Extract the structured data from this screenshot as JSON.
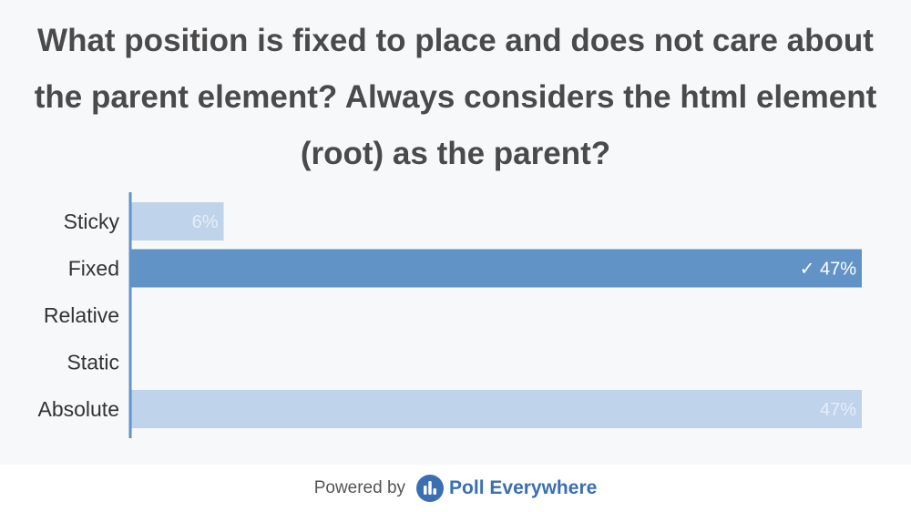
{
  "question": {
    "line1": "What position is fixed to place and does not care about",
    "line2": "the parent element? Always considers the html element",
    "line3": "(root) as the parent?"
  },
  "chart_data": {
    "type": "bar",
    "orientation": "horizontal",
    "categories": [
      "Sticky",
      "Fixed",
      "Relative",
      "Static",
      "Absolute"
    ],
    "values": [
      6,
      47,
      0,
      0,
      47
    ],
    "value_labels": [
      "6%",
      "✓ 47%",
      "",
      "",
      "47%"
    ],
    "correct": [
      false,
      true,
      false,
      false,
      false
    ],
    "xlim": [
      0,
      47
    ],
    "colors": {
      "correct": "#6293c6",
      "other": "#bfd3ea",
      "correct_label": "#ffffff",
      "other_label": "#e6eef8",
      "axis": "#6293c6",
      "category_label": "#333333"
    }
  },
  "footer": {
    "powered_by": "Powered by",
    "brand": "Poll Everywhere",
    "icon": "poll-everywhere-logo-icon",
    "brand_color": "#3a6fb4"
  }
}
